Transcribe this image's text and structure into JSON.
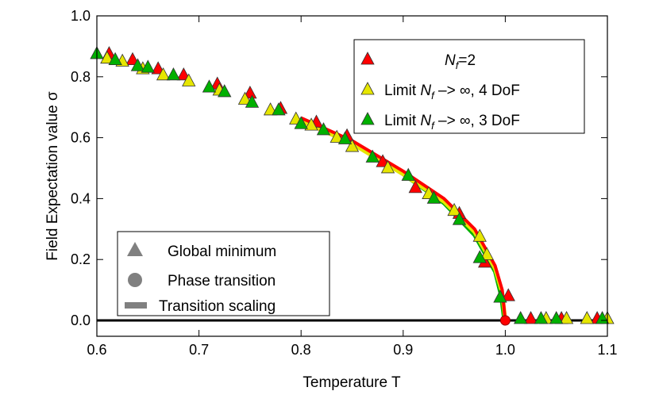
{
  "chart_data": {
    "type": "scatter",
    "xlabel": "Temperature T",
    "ylabel": "Field Expectation value σ",
    "xlim": [
      0.6,
      1.1
    ],
    "ylim": [
      -0.05,
      1.0
    ],
    "xticks": [
      "0.6",
      "0.7",
      "0.8",
      "0.9",
      "1.0",
      "1.1"
    ],
    "yticks": [
      "0.0",
      "0.2",
      "0.4",
      "0.6",
      "0.8",
      "1.0"
    ],
    "grid": false,
    "legend_placement": "top-right",
    "series": [
      {
        "name": "N_f=2",
        "legend_main": "N",
        "legend_sub": "f",
        "legend_rest": "=2",
        "color": "#ff0000",
        "points": [
          [
            0.612,
            0.87
          ],
          [
            0.635,
            0.85
          ],
          [
            0.66,
            0.82
          ],
          [
            0.685,
            0.8
          ],
          [
            0.718,
            0.77
          ],
          [
            0.75,
            0.74
          ],
          [
            0.78,
            0.69
          ],
          [
            0.815,
            0.645
          ],
          [
            0.845,
            0.6
          ],
          [
            0.88,
            0.515
          ],
          [
            0.912,
            0.43
          ],
          [
            0.955,
            0.345
          ],
          [
            0.98,
            0.185
          ],
          [
            1.003,
            0.075
          ],
          [
            1.025,
            0
          ],
          [
            1.055,
            0
          ],
          [
            1.09,
            0
          ]
        ],
        "curve": [
          [
            0.8,
            0.665
          ],
          [
            0.85,
            0.59
          ],
          [
            0.9,
            0.49
          ],
          [
            0.94,
            0.4
          ],
          [
            0.97,
            0.3
          ],
          [
            0.99,
            0.18
          ],
          [
            0.997,
            0.1
          ],
          [
            1.0,
            0
          ]
        ]
      },
      {
        "name": "Limit N_f -> ∞, 4 DoF",
        "legend_pre": "Limit ",
        "legend_main": "N",
        "legend_sub": "f",
        "legend_rest": " –> ∞, 4 DoF",
        "color": "#e6e600",
        "points": [
          [
            0.61,
            0.855
          ],
          [
            0.625,
            0.845
          ],
          [
            0.645,
            0.82
          ],
          [
            0.665,
            0.8
          ],
          [
            0.69,
            0.78
          ],
          [
            0.72,
            0.75
          ],
          [
            0.745,
            0.72
          ],
          [
            0.77,
            0.685
          ],
          [
            0.795,
            0.655
          ],
          [
            0.81,
            0.635
          ],
          [
            0.835,
            0.595
          ],
          [
            0.85,
            0.565
          ],
          [
            0.885,
            0.495
          ],
          [
            0.925,
            0.41
          ],
          [
            0.95,
            0.355
          ],
          [
            0.975,
            0.27
          ],
          [
            0.982,
            0.21
          ],
          [
            1.04,
            0
          ],
          [
            1.06,
            0
          ],
          [
            1.08,
            0
          ],
          [
            1.1,
            0
          ]
        ],
        "curve": [
          [
            0.8,
            0.655
          ],
          [
            0.85,
            0.58
          ],
          [
            0.9,
            0.48
          ],
          [
            0.94,
            0.39
          ],
          [
            0.97,
            0.29
          ],
          [
            0.99,
            0.17
          ],
          [
            0.997,
            0.09
          ],
          [
            1.0,
            0
          ]
        ]
      },
      {
        "name": "Limit N_f -> ∞, 3 DoF",
        "legend_pre": "Limit ",
        "legend_main": "N",
        "legend_sub": "f",
        "legend_rest": " –> ∞, 3 DoF",
        "color": "#00b000",
        "points": [
          [
            0.6,
            0.87
          ],
          [
            0.618,
            0.85
          ],
          [
            0.64,
            0.83
          ],
          [
            0.65,
            0.825
          ],
          [
            0.675,
            0.8
          ],
          [
            0.71,
            0.76
          ],
          [
            0.725,
            0.745
          ],
          [
            0.752,
            0.71
          ],
          [
            0.778,
            0.685
          ],
          [
            0.8,
            0.64
          ],
          [
            0.822,
            0.62
          ],
          [
            0.843,
            0.59
          ],
          [
            0.87,
            0.53
          ],
          [
            0.905,
            0.47
          ],
          [
            0.93,
            0.395
          ],
          [
            0.955,
            0.325
          ],
          [
            0.975,
            0.2
          ],
          [
            0.995,
            0.07
          ],
          [
            1.015,
            0
          ],
          [
            1.035,
            0
          ],
          [
            1.05,
            0
          ],
          [
            1.095,
            0
          ]
        ],
        "curve": [
          [
            0.8,
            0.66
          ],
          [
            0.85,
            0.585
          ],
          [
            0.9,
            0.48
          ],
          [
            0.94,
            0.385
          ],
          [
            0.97,
            0.28
          ],
          [
            0.99,
            0.16
          ],
          [
            0.996,
            0.08
          ],
          [
            0.999,
            0
          ]
        ]
      }
    ],
    "transition_point": [
      1.0,
      0
    ],
    "marker_legend": {
      "items": [
        "Global minimum",
        "Phase transition",
        "Transition scaling"
      ],
      "color": "#808080"
    }
  }
}
